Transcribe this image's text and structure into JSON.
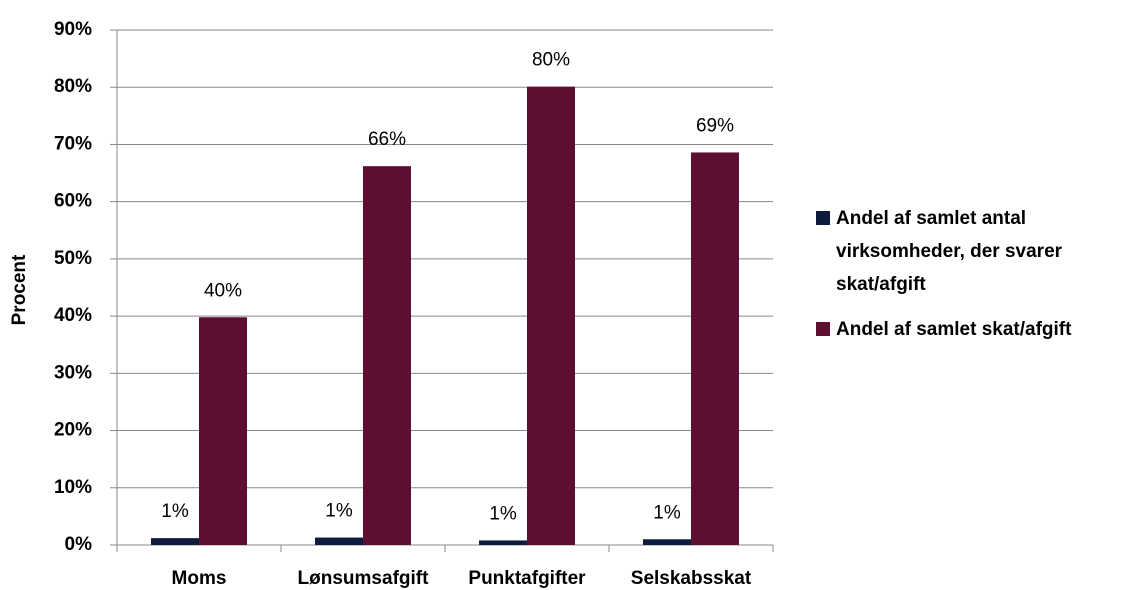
{
  "chart_data": {
    "type": "bar",
    "y_label": "Procent",
    "categories": [
      "Moms",
      "Lønsumsafgift",
      "Punktafgifter",
      "Selskabsskat"
    ],
    "series": [
      {
        "name": "Andel af samlet antal virksomheder, der svarer skat/afgift",
        "color": "#0d1b3e",
        "values": [
          1.2,
          1.3,
          0.8,
          1.0
        ],
        "value_labels": [
          "1%",
          "1%",
          "1%",
          "1%"
        ]
      },
      {
        "name": "Andel af samlet skat/afgift",
        "color": "#5c0f30",
        "values": [
          39.8,
          66.2,
          80.1,
          68.6
        ],
        "value_labels": [
          "40%",
          "66%",
          "80%",
          "69%"
        ]
      }
    ],
    "ylim": [
      0,
      90
    ],
    "yticks": [
      {
        "value": 0,
        "label": "0%"
      },
      {
        "value": 10,
        "label": "10%"
      },
      {
        "value": 20,
        "label": "20%"
      },
      {
        "value": 30,
        "label": "30%"
      },
      {
        "value": 40,
        "label": "40%"
      },
      {
        "value": 50,
        "label": "50%"
      },
      {
        "value": 60,
        "label": "60%"
      },
      {
        "value": 70,
        "label": "70%"
      },
      {
        "value": 80,
        "label": "80%"
      },
      {
        "value": 90,
        "label": "90%"
      }
    ],
    "grid": true,
    "legend": "right"
  }
}
